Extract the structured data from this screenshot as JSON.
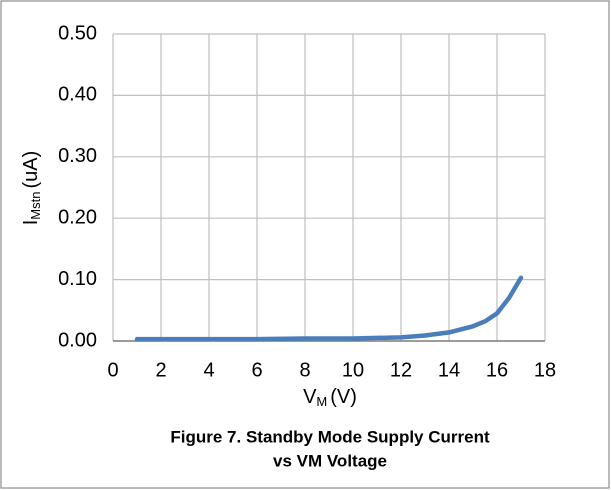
{
  "chart_data": {
    "type": "line",
    "x": [
      1,
      2,
      4,
      6,
      8,
      10,
      11,
      12,
      13,
      14,
      15,
      15.5,
      16,
      16.5,
      17
    ],
    "values": [
      0.003,
      0.003,
      0.003,
      0.003,
      0.004,
      0.004,
      0.005,
      0.006,
      0.009,
      0.014,
      0.024,
      0.032,
      0.045,
      0.07,
      0.103
    ],
    "color": "#4a7ebb",
    "xlim": [
      0,
      18
    ],
    "xticks": [
      0,
      2,
      4,
      6,
      8,
      10,
      12,
      14,
      16,
      18
    ],
    "ylim": [
      0,
      0.5
    ],
    "yticks": [
      {
        "value": 0,
        "label": "0.00"
      },
      {
        "value": 0.1,
        "label": "0.10"
      },
      {
        "value": 0.2,
        "label": "0.20"
      },
      {
        "value": 0.3,
        "label": "0.30"
      },
      {
        "value": 0.4,
        "label": "0.40"
      },
      {
        "value": 0.5,
        "label": "0.50"
      }
    ],
    "grid": true,
    "x_label": {
      "main": "V",
      "sub": "M",
      "unit": "(V)"
    },
    "y_label": {
      "main": "I",
      "sub": "Mstn",
      "unit": "(uA)"
    },
    "caption": [
      "Figure 7. Standby Mode Supply Current",
      "vs VM Voltage"
    ]
  }
}
